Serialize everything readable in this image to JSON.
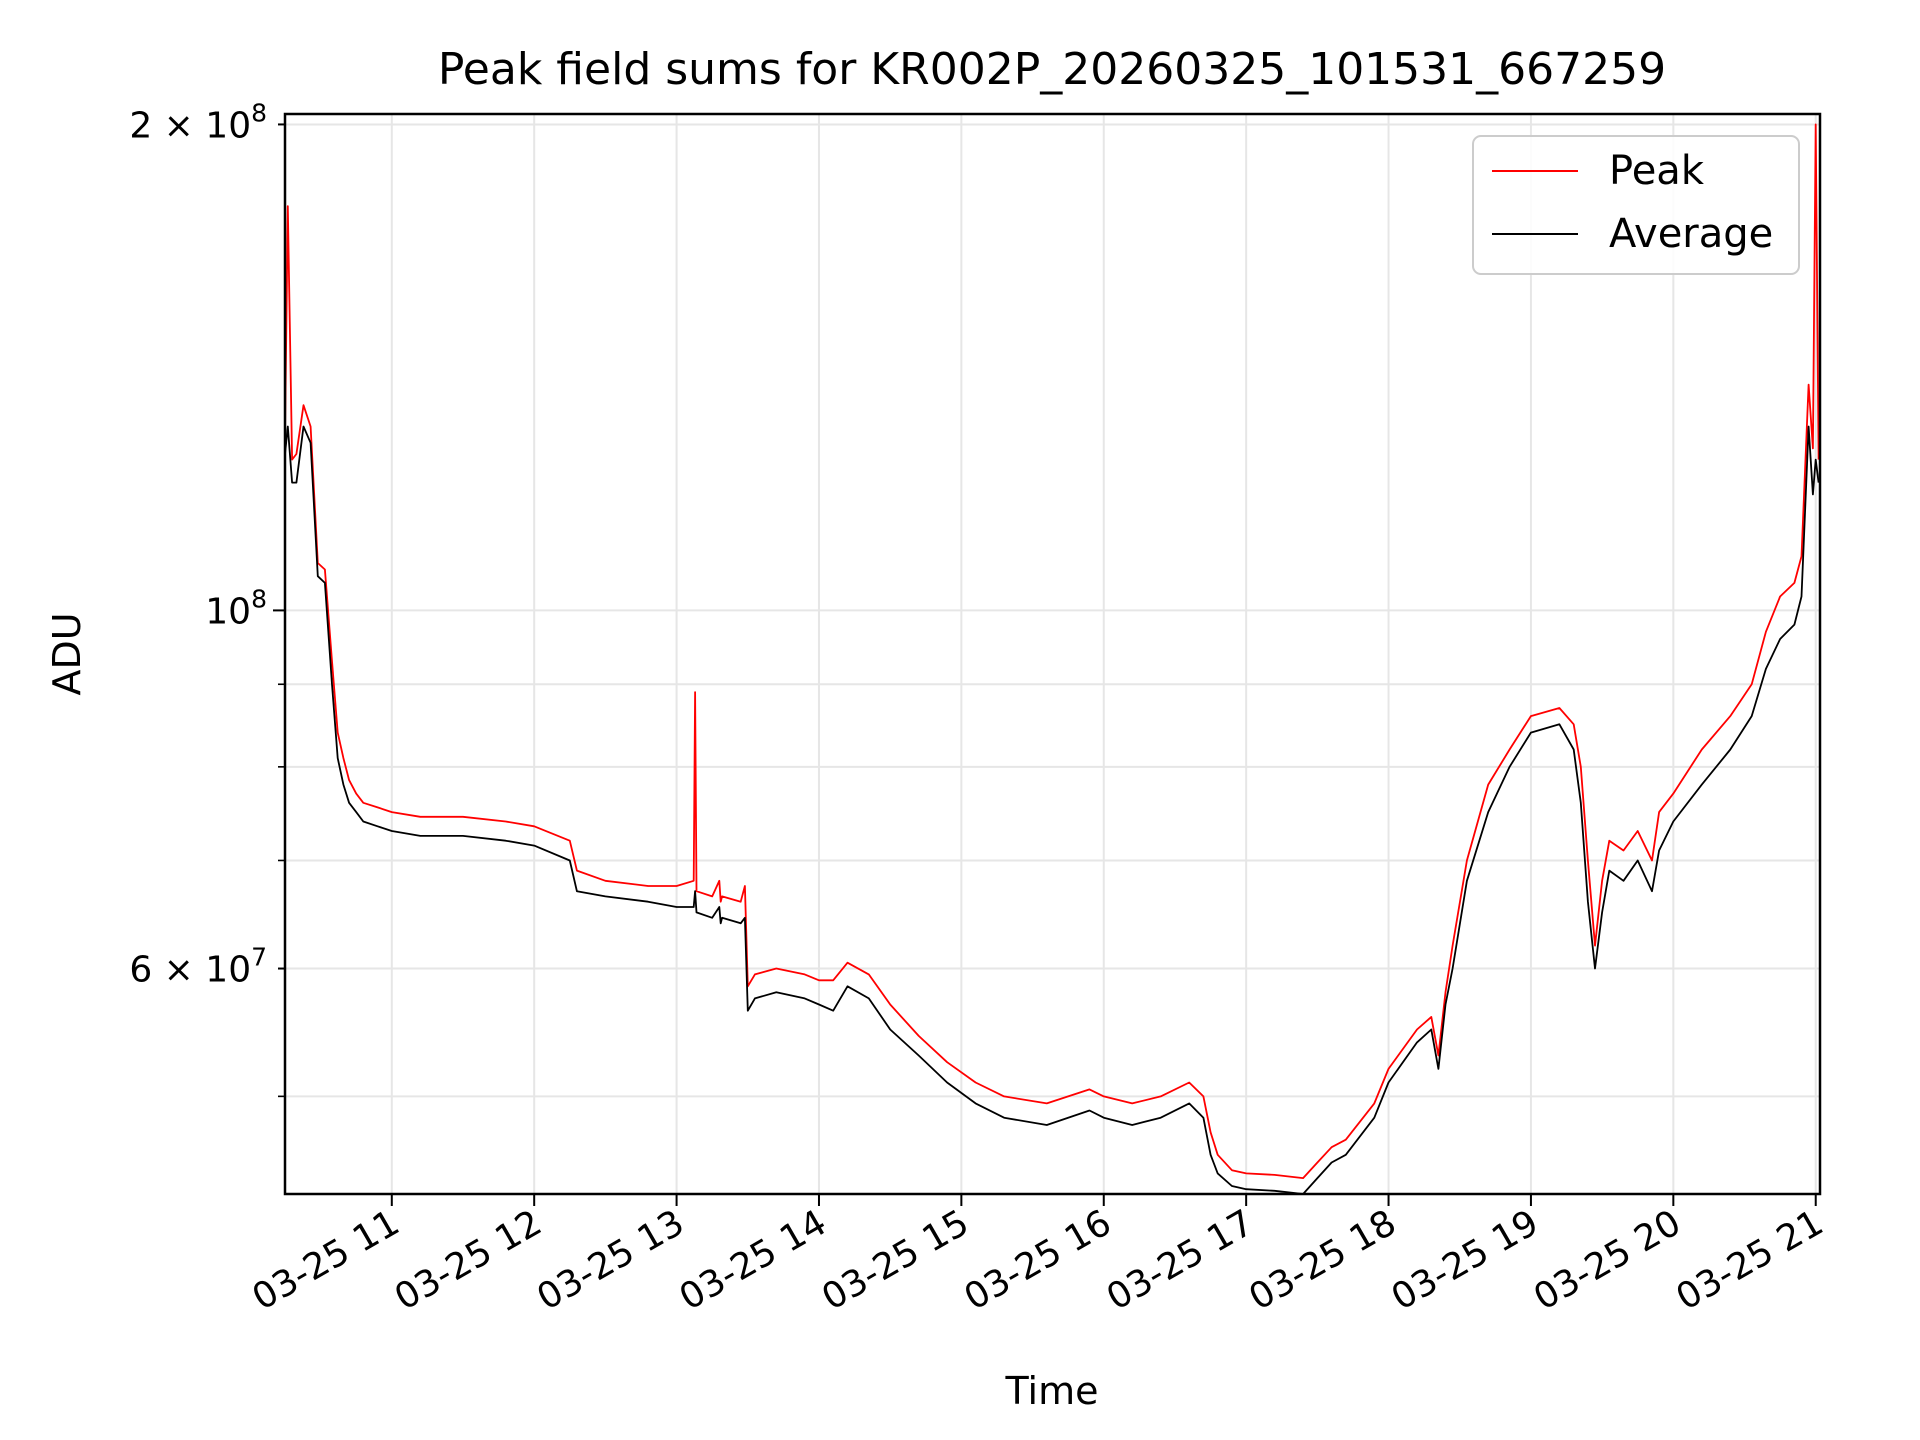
{
  "chart_data": {
    "type": "line",
    "title": "Peak field sums for KR002P_20260325_101531_667259",
    "xlabel": "Time",
    "ylabel": "ADU",
    "yscale": "log",
    "ylim": [
      43500000,
      203000000
    ],
    "xlim_hours": [
      10.25,
      21.03
    ],
    "x_unit": "hour of day (2026-03-25)",
    "x_ticks": [
      {
        "value": 11,
        "label": "03-25 11"
      },
      {
        "value": 12,
        "label": "03-25 12"
      },
      {
        "value": 13,
        "label": "03-25 13"
      },
      {
        "value": 14,
        "label": "03-25 14"
      },
      {
        "value": 15,
        "label": "03-25 15"
      },
      {
        "value": 16,
        "label": "03-25 16"
      },
      {
        "value": 17,
        "label": "03-25 17"
      },
      {
        "value": 18,
        "label": "03-25 18"
      },
      {
        "value": 19,
        "label": "03-25 19"
      },
      {
        "value": 20,
        "label": "03-25 20"
      },
      {
        "value": 21,
        "label": "03-25 21"
      }
    ],
    "y_major_ticks": [
      {
        "value": 100000000,
        "label_base": "10",
        "label_exp": "8"
      }
    ],
    "y_labeled_minor_ticks": [
      {
        "value": 200000000,
        "label_base": "2 × 10",
        "label_exp": "8"
      },
      {
        "value": 60000000,
        "label_base": "6 × 10",
        "label_exp": "7"
      }
    ],
    "y_minor_ticks": [
      50000000,
      70000000,
      80000000,
      90000000
    ],
    "grid": true,
    "legend_position": "upper right",
    "series": [
      {
        "name": "Peak",
        "color": "#ff0000",
        "x": [
          10.25,
          10.27,
          10.3,
          10.33,
          10.38,
          10.43,
          10.48,
          10.53,
          10.58,
          10.62,
          10.66,
          10.7,
          10.75,
          10.8,
          10.9,
          11.0,
          11.2,
          11.5,
          11.8,
          12.0,
          12.25,
          12.3,
          12.5,
          12.8,
          13.0,
          13.12,
          13.13,
          13.14,
          13.25,
          13.3,
          13.31,
          13.32,
          13.45,
          13.48,
          13.5,
          13.55,
          13.7,
          13.9,
          14.0,
          14.1,
          14.2,
          14.35,
          14.5,
          14.7,
          14.9,
          15.1,
          15.3,
          15.6,
          15.9,
          16.0,
          16.2,
          16.4,
          16.6,
          16.7,
          16.75,
          16.8,
          16.9,
          17.0,
          17.2,
          17.4,
          17.5,
          17.6,
          17.7,
          17.9,
          18.0,
          18.2,
          18.3,
          18.35,
          18.4,
          18.45,
          18.55,
          18.7,
          18.85,
          19.0,
          19.2,
          19.3,
          19.35,
          19.4,
          19.45,
          19.5,
          19.55,
          19.65,
          19.75,
          19.85,
          19.9,
          20.0,
          20.2,
          20.4,
          20.55,
          20.65,
          20.75,
          20.85,
          20.9,
          20.95,
          20.98,
          21.0,
          21.02
        ],
        "y": [
          128000000,
          178000000,
          124000000,
          125000000,
          134000000,
          130000000,
          107000000,
          106000000,
          93000000,
          84000000,
          81000000,
          78500000,
          77000000,
          76000000,
          75500000,
          75000000,
          74500000,
          74500000,
          74000000,
          73500000,
          72000000,
          69000000,
          68000000,
          67500000,
          67500000,
          68000000,
          89000000,
          67000000,
          66500000,
          68000000,
          66000000,
          66500000,
          66000000,
          67500000,
          58500000,
          59500000,
          60000000,
          59500000,
          59000000,
          59000000,
          60500000,
          59500000,
          57000000,
          54500000,
          52500000,
          51000000,
          50000000,
          49500000,
          50500000,
          50000000,
          49500000,
          50000000,
          51000000,
          50000000,
          47500000,
          46000000,
          45000000,
          44800000,
          44700000,
          44500000,
          45500000,
          46500000,
          47000000,
          49500000,
          52000000,
          55000000,
          56000000,
          53000000,
          58000000,
          62000000,
          70000000,
          78000000,
          82000000,
          86000000,
          87000000,
          85000000,
          80000000,
          70000000,
          62000000,
          68000000,
          72000000,
          71000000,
          73000000,
          70000000,
          75000000,
          77000000,
          82000000,
          86000000,
          90000000,
          97000000,
          102000000,
          104000000,
          108000000,
          138000000,
          126000000,
          200000000,
          124000000
        ]
      },
      {
        "name": "Average",
        "color": "#000000",
        "x": [
          10.25,
          10.27,
          10.3,
          10.33,
          10.38,
          10.43,
          10.48,
          10.53,
          10.58,
          10.62,
          10.66,
          10.7,
          10.75,
          10.8,
          10.9,
          11.0,
          11.2,
          11.5,
          11.8,
          12.0,
          12.25,
          12.3,
          12.5,
          12.8,
          13.0,
          13.12,
          13.13,
          13.14,
          13.25,
          13.3,
          13.31,
          13.32,
          13.45,
          13.48,
          13.5,
          13.55,
          13.7,
          13.9,
          14.0,
          14.1,
          14.2,
          14.35,
          14.5,
          14.7,
          14.9,
          15.1,
          15.3,
          15.6,
          15.9,
          16.0,
          16.2,
          16.4,
          16.6,
          16.7,
          16.75,
          16.8,
          16.9,
          17.0,
          17.2,
          17.4,
          17.5,
          17.6,
          17.7,
          17.9,
          18.0,
          18.2,
          18.3,
          18.35,
          18.4,
          18.45,
          18.55,
          18.7,
          18.85,
          19.0,
          19.2,
          19.3,
          19.35,
          19.4,
          19.45,
          19.5,
          19.55,
          19.65,
          19.75,
          19.85,
          19.9,
          20.0,
          20.2,
          20.4,
          20.55,
          20.65,
          20.75,
          20.85,
          20.9,
          20.95,
          20.98,
          21.0,
          21.02
        ],
        "y": [
          125000000,
          130000000,
          120000000,
          120000000,
          130000000,
          127000000,
          105000000,
          104000000,
          90000000,
          81000000,
          78000000,
          76000000,
          75000000,
          74000000,
          73500000,
          73000000,
          72500000,
          72500000,
          72000000,
          71500000,
          70000000,
          67000000,
          66500000,
          66000000,
          65500000,
          65500000,
          67000000,
          65000000,
          64500000,
          65500000,
          64000000,
          64500000,
          64000000,
          64500000,
          56500000,
          57500000,
          58000000,
          57500000,
          57000000,
          56500000,
          58500000,
          57500000,
          55000000,
          53000000,
          51000000,
          49500000,
          48500000,
          48000000,
          49000000,
          48500000,
          48000000,
          48500000,
          49500000,
          48500000,
          46000000,
          44800000,
          44000000,
          43800000,
          43700000,
          43500000,
          44500000,
          45500000,
          46000000,
          48500000,
          51000000,
          54000000,
          55000000,
          52000000,
          57000000,
          60000000,
          68000000,
          75000000,
          80000000,
          84000000,
          85000000,
          82000000,
          76000000,
          66000000,
          60000000,
          65000000,
          69000000,
          68000000,
          70000000,
          67000000,
          71000000,
          74000000,
          78000000,
          82000000,
          86000000,
          92000000,
          96000000,
          98000000,
          102000000,
          130000000,
          118000000,
          124000000,
          120000000
        ]
      }
    ]
  }
}
